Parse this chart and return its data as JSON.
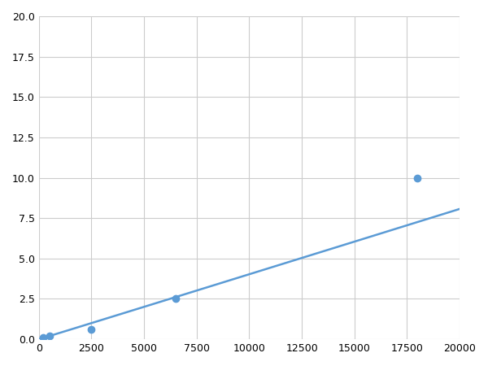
{
  "x": [
    200,
    500,
    2500,
    6500,
    18000
  ],
  "y": [
    0.1,
    0.2,
    0.6,
    2.5,
    10.0
  ],
  "line_color": "#5b9bd5",
  "marker_color": "#5b9bd5",
  "marker_size": 6,
  "xlim": [
    0,
    20000
  ],
  "ylim": [
    0,
    20.0
  ],
  "xticks": [
    0,
    2500,
    5000,
    7500,
    10000,
    12500,
    15000,
    17500,
    20000
  ],
  "yticks": [
    0.0,
    2.5,
    5.0,
    7.5,
    10.0,
    12.5,
    15.0,
    17.5,
    20.0
  ],
  "xtick_labels": [
    "0",
    "2500",
    "5000",
    "7500",
    "10000",
    "12500",
    "15000",
    "17500",
    "20000"
  ],
  "ytick_labels": [
    "0.0",
    "2.5",
    "5.0",
    "7.5",
    "10.0",
    "12.5",
    "15.0",
    "17.5",
    "20.0"
  ],
  "grid_color": "#cccccc",
  "background_color": "#ffffff",
  "linewidth": 1.8
}
